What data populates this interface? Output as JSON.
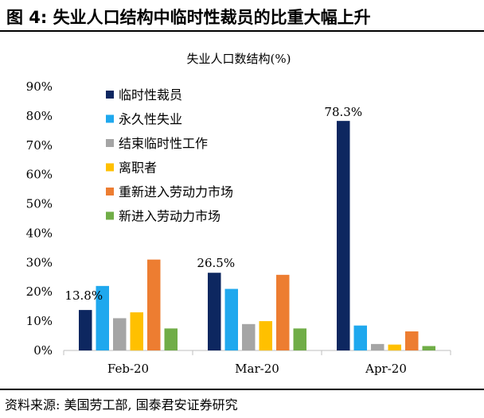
{
  "figure": {
    "title": "图 4:  失业人口结构中临时性裁员的比重大幅上升",
    "source": "资料来源:  美国劳工部, 国泰君安证券研究"
  },
  "chart_data": {
    "type": "bar",
    "title": "失业人口数结构(%)",
    "xlabel": "",
    "ylabel": "",
    "ylim": [
      0,
      90
    ],
    "yticks": [
      "0%",
      "10%",
      "20%",
      "30%",
      "40%",
      "50%",
      "60%",
      "70%",
      "80%",
      "90%"
    ],
    "grid": false,
    "legend_position": "top-left",
    "categories": [
      "Feb-20",
      "Mar-20",
      "Apr-20"
    ],
    "series": [
      {
        "name": "临时性裁员",
        "color": "#0d2760",
        "values": [
          13.8,
          26.5,
          78.3
        ]
      },
      {
        "name": "永久性失业",
        "color": "#1fa8ee",
        "values": [
          22.0,
          21.0,
          8.5
        ]
      },
      {
        "name": "结束临时性工作",
        "color": "#a5a5a5",
        "values": [
          11.0,
          9.0,
          2.2
        ]
      },
      {
        "name": "离职者",
        "color": "#ffc000",
        "values": [
          13.0,
          10.0,
          2.0
        ]
      },
      {
        "name": "重新进入劳动力市场",
        "color": "#ed7d31",
        "values": [
          31.0,
          25.8,
          6.5
        ]
      },
      {
        "name": "新进入劳动力市场",
        "color": "#70ad47",
        "values": [
          7.5,
          7.5,
          1.5
        ]
      }
    ],
    "annotations": [
      {
        "series": 0,
        "category": 0,
        "text": "13.8%"
      },
      {
        "series": 0,
        "category": 1,
        "text": "26.5%"
      },
      {
        "series": 0,
        "category": 2,
        "text": "78.3%"
      }
    ]
  }
}
